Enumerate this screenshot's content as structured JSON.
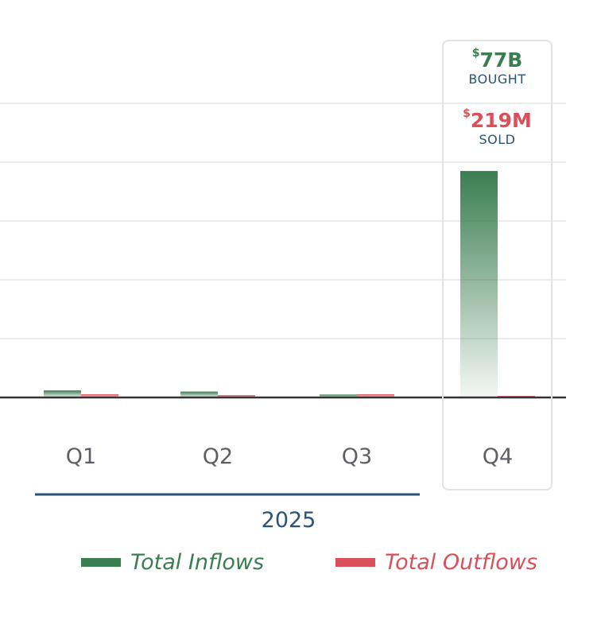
{
  "chart_data": {
    "type": "bar",
    "categories": [
      "Q1",
      "Q2",
      "Q3",
      "Q4"
    ],
    "group_label": "2025",
    "series": [
      {
        "name": "Total Inflows",
        "color": "#3a7d50",
        "values": [
          2.4,
          2.0,
          1.0,
          77
        ]
      },
      {
        "name": "Total Outflows",
        "color": "#d9505a",
        "values": [
          1.1,
          0.8,
          1.1,
          0.219
        ]
      }
    ],
    "ylim": [
      0,
      100
    ],
    "grid": true,
    "legend_position": "bottom",
    "highlight": {
      "category": "Q4",
      "bought_currency": "$",
      "bought_value": "77B",
      "bought_label": "BOUGHT",
      "sold_currency": "$",
      "sold_value": "219M",
      "sold_label": "SOLD"
    }
  }
}
